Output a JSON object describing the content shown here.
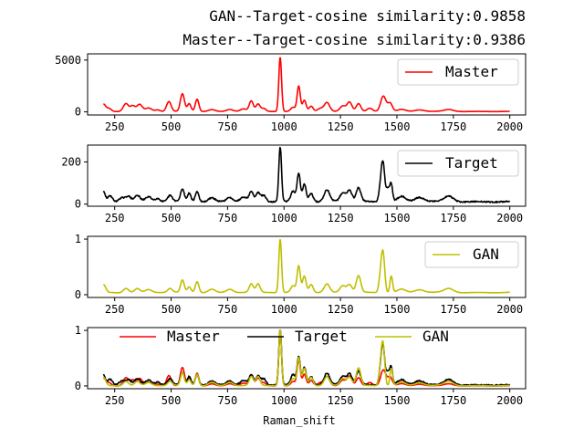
{
  "chart_data": {
    "type": "line",
    "title_lines": [
      "GAN--Target-cosine similarity:0.9858",
      "Master--Target-cosine similarity:0.9386"
    ],
    "xlabel": "Raman_shift",
    "xlim": [
      130,
      2070
    ],
    "xticks": [
      250,
      500,
      750,
      1000,
      1250,
      1500,
      1750,
      2000
    ],
    "colors": {
      "Master": "#ff0000",
      "Target": "#000000",
      "GAN": "#bfbf00"
    },
    "spectra": {
      "Master": {
        "baseline": 40,
        "wave_amp": 20,
        "peaks": [
          [
            200,
            700,
            10
          ],
          [
            225,
            280,
            10
          ],
          [
            300,
            780,
            12
          ],
          [
            330,
            530,
            10
          ],
          [
            360,
            680,
            12
          ],
          [
            400,
            330,
            14
          ],
          [
            440,
            150,
            10
          ],
          [
            490,
            950,
            10
          ],
          [
            550,
            1700,
            9
          ],
          [
            580,
            750,
            8
          ],
          [
            615,
            1200,
            8
          ],
          [
            680,
            180,
            15
          ],
          [
            760,
            200,
            15
          ],
          [
            820,
            240,
            14
          ],
          [
            855,
            1000,
            9
          ],
          [
            885,
            700,
            9
          ],
          [
            910,
            280,
            10
          ],
          [
            983,
            5250,
            6
          ],
          [
            1040,
            400,
            10
          ],
          [
            1065,
            2450,
            7
          ],
          [
            1090,
            1100,
            8
          ],
          [
            1120,
            520,
            9
          ],
          [
            1160,
            280,
            12
          ],
          [
            1190,
            850,
            12
          ],
          [
            1260,
            520,
            12
          ],
          [
            1290,
            900,
            11
          ],
          [
            1330,
            750,
            10
          ],
          [
            1380,
            300,
            12
          ],
          [
            1440,
            1500,
            12
          ],
          [
            1470,
            800,
            10
          ],
          [
            1520,
            200,
            18
          ],
          [
            1600,
            150,
            20
          ],
          [
            1730,
            180,
            20
          ]
        ]
      },
      "Target": {
        "baseline": 12,
        "wave_amp": 3,
        "noise": 3,
        "peaks": [
          [
            200,
            45,
            8
          ],
          [
            230,
            28,
            10
          ],
          [
            280,
            20,
            12
          ],
          [
            310,
            28,
            12
          ],
          [
            350,
            30,
            12
          ],
          [
            400,
            22,
            14
          ],
          [
            440,
            15,
            10
          ],
          [
            495,
            28,
            10
          ],
          [
            550,
            58,
            8
          ],
          [
            580,
            40,
            8
          ],
          [
            615,
            50,
            8
          ],
          [
            680,
            18,
            15
          ],
          [
            760,
            20,
            15
          ],
          [
            820,
            22,
            14
          ],
          [
            855,
            45,
            9
          ],
          [
            885,
            40,
            9
          ],
          [
            910,
            28,
            10
          ],
          [
            983,
            260,
            6
          ],
          [
            1040,
            50,
            10
          ],
          [
            1065,
            135,
            7
          ],
          [
            1090,
            85,
            8
          ],
          [
            1120,
            42,
            9
          ],
          [
            1190,
            55,
            12
          ],
          [
            1260,
            40,
            12
          ],
          [
            1290,
            55,
            11
          ],
          [
            1330,
            65,
            10
          ],
          [
            1430,
            100,
            8
          ],
          [
            1440,
            140,
            7
          ],
          [
            1460,
            65,
            8
          ],
          [
            1475,
            80,
            6
          ],
          [
            1520,
            25,
            18
          ],
          [
            1600,
            20,
            20
          ],
          [
            1730,
            25,
            20
          ]
        ]
      },
      "GAN": {
        "baseline": 0.04,
        "wave_amp": 0.008,
        "peaks": [
          [
            200,
            0.14,
            10
          ],
          [
            300,
            0.08,
            12
          ],
          [
            350,
            0.07,
            12
          ],
          [
            400,
            0.05,
            14
          ],
          [
            495,
            0.07,
            10
          ],
          [
            550,
            0.22,
            8
          ],
          [
            580,
            0.1,
            8
          ],
          [
            615,
            0.2,
            8
          ],
          [
            680,
            0.06,
            15
          ],
          [
            760,
            0.06,
            15
          ],
          [
            855,
            0.15,
            9
          ],
          [
            885,
            0.15,
            9
          ],
          [
            983,
            0.96,
            6
          ],
          [
            1040,
            0.12,
            10
          ],
          [
            1065,
            0.48,
            7
          ],
          [
            1090,
            0.3,
            8
          ],
          [
            1120,
            0.15,
            9
          ],
          [
            1190,
            0.15,
            12
          ],
          [
            1260,
            0.12,
            12
          ],
          [
            1290,
            0.14,
            11
          ],
          [
            1330,
            0.3,
            10
          ],
          [
            1430,
            0.4,
            8
          ],
          [
            1440,
            0.55,
            7
          ],
          [
            1475,
            0.3,
            6
          ],
          [
            1520,
            0.06,
            18
          ],
          [
            1600,
            0.05,
            20
          ],
          [
            1730,
            0.07,
            20
          ]
        ]
      }
    },
    "panels": [
      {
        "ylim": [
          -300,
          5600
        ],
        "yticks": [
          0,
          5000
        ],
        "yticklabels": [
          "0",
          "5000"
        ],
        "series": [
          "Master"
        ],
        "legend": [
          "Master"
        ],
        "legend_loc": "upper right"
      },
      {
        "ylim": [
          -10,
          280
        ],
        "yticks": [
          0,
          200
        ],
        "yticklabels": [
          "0",
          "200"
        ],
        "series": [
          "Target"
        ],
        "legend": [
          "Target"
        ],
        "legend_loc": "upper right"
      },
      {
        "ylim": [
          -0.05,
          1.05
        ],
        "yticks": [
          0,
          1
        ],
        "yticklabels": [
          "0",
          "1"
        ],
        "series": [
          "GAN"
        ],
        "legend": [
          "GAN"
        ],
        "legend_loc": "upper right"
      },
      {
        "ylim": [
          -0.05,
          1.05
        ],
        "yticks": [
          0,
          1
        ],
        "yticklabels": [
          "0",
          "1"
        ],
        "series": [
          "Master",
          "Target",
          "GAN"
        ],
        "legend": [
          "Master",
          "Target",
          "GAN"
        ],
        "legend_loc": "upper center"
      }
    ]
  }
}
